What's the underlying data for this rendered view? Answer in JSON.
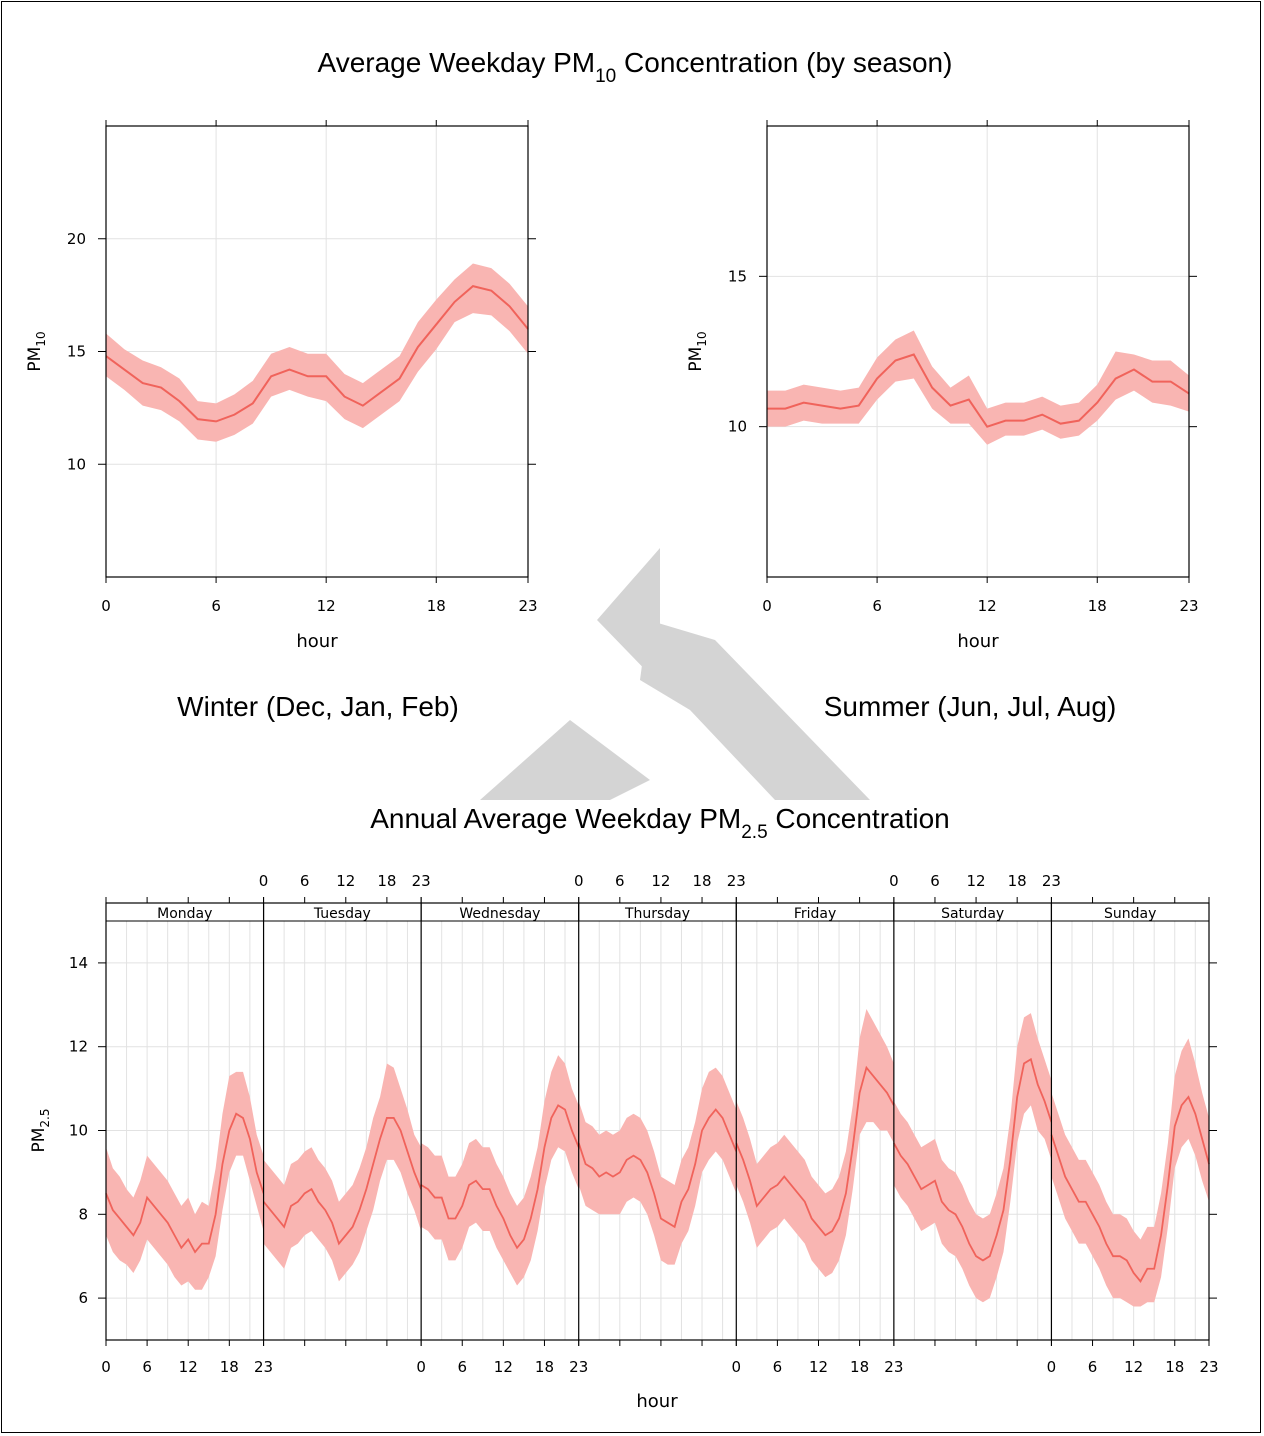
{
  "colors": {
    "line": "#f0635b",
    "band": "#f9b5b2",
    "grid": "#e2e2e2",
    "axis": "#000000",
    "watermark": "#d4d4d4"
  },
  "top_title": {
    "prefix": "Average Weekday PM",
    "sub": "10",
    "suffix": " Concentration (by season)"
  },
  "season_labels": {
    "winter": "Winter (Dec, Jan, Feb)",
    "summer": "Summer (Jun, Jul, Aug)"
  },
  "bottom_title": {
    "prefix": "Annual Average Weekday PM",
    "sub": "2.5",
    "suffix": " Concentration"
  },
  "chart_data": [
    {
      "type": "line",
      "panel": "winter",
      "x": [
        0,
        1,
        2,
        3,
        4,
        5,
        6,
        7,
        8,
        9,
        10,
        11,
        12,
        13,
        14,
        15,
        16,
        17,
        18,
        19,
        20,
        21,
        22,
        23
      ],
      "xticks": [
        0,
        6,
        12,
        18,
        23
      ],
      "xlabel": "hour",
      "ylabel": {
        "base": "PM",
        "sub": "10"
      },
      "ylim": [
        5,
        25
      ],
      "yticks": [
        10,
        15,
        20
      ],
      "grid": true,
      "series": [
        {
          "values": [
            14.8,
            14.2,
            13.6,
            13.4,
            12.8,
            12.0,
            11.9,
            12.2,
            12.7,
            13.9,
            14.2,
            13.9,
            13.9,
            13.0,
            12.6,
            13.2,
            13.8,
            15.2,
            16.2,
            17.2,
            17.9,
            17.7,
            17.0,
            16.0
          ],
          "lower": [
            13.9,
            13.3,
            12.6,
            12.4,
            11.9,
            11.1,
            11.0,
            11.3,
            11.8,
            13.0,
            13.3,
            13.0,
            12.8,
            12.0,
            11.6,
            12.2,
            12.8,
            14.1,
            15.1,
            16.3,
            16.7,
            16.6,
            15.9,
            14.9
          ],
          "upper": [
            15.8,
            15.1,
            14.6,
            14.3,
            13.8,
            12.8,
            12.7,
            13.1,
            13.7,
            14.9,
            15.2,
            14.9,
            14.9,
            14.0,
            13.6,
            14.2,
            14.8,
            16.3,
            17.3,
            18.2,
            18.9,
            18.7,
            18.0,
            17.0
          ]
        }
      ]
    },
    {
      "type": "line",
      "panel": "summer",
      "x": [
        0,
        1,
        2,
        3,
        4,
        5,
        6,
        7,
        8,
        9,
        10,
        11,
        12,
        13,
        14,
        15,
        16,
        17,
        18,
        19,
        20,
        21,
        22,
        23
      ],
      "xticks": [
        0,
        6,
        12,
        18,
        23
      ],
      "xlabel": "hour",
      "ylabel": {
        "base": "PM",
        "sub": "10"
      },
      "ylim": [
        5,
        20
      ],
      "yticks": [
        10,
        15
      ],
      "grid": true,
      "series": [
        {
          "values": [
            10.6,
            10.6,
            10.8,
            10.7,
            10.6,
            10.7,
            11.6,
            12.2,
            12.4,
            11.3,
            10.7,
            10.9,
            10.0,
            10.2,
            10.2,
            10.4,
            10.1,
            10.2,
            10.8,
            11.6,
            11.9,
            11.5,
            11.5,
            11.1
          ],
          "lower": [
            10.0,
            10.0,
            10.2,
            10.1,
            10.1,
            10.1,
            10.9,
            11.5,
            11.6,
            10.6,
            10.1,
            10.1,
            9.4,
            9.7,
            9.7,
            9.9,
            9.6,
            9.7,
            10.2,
            10.9,
            11.2,
            10.8,
            10.7,
            10.5
          ],
          "upper": [
            11.2,
            11.2,
            11.4,
            11.3,
            11.2,
            11.3,
            12.3,
            12.9,
            13.2,
            12.0,
            11.3,
            11.7,
            10.6,
            10.8,
            10.8,
            11.0,
            10.7,
            10.8,
            11.4,
            12.5,
            12.4,
            12.2,
            12.2,
            11.7
          ]
        }
      ]
    },
    {
      "type": "line",
      "panel": "annual-by-day",
      "panels": [
        "Monday",
        "Tuesday",
        "Wednesday",
        "Thursday",
        "Friday",
        "Saturday",
        "Sunday"
      ],
      "xticks": [
        0,
        6,
        12,
        18,
        23
      ],
      "xlabel": "hour",
      "ylabel": {
        "base": "PM",
        "sub": "2.5"
      },
      "ylim": [
        5,
        15
      ],
      "yticks": [
        6,
        8,
        10,
        12,
        14
      ],
      "grid": true,
      "series": [
        {
          "name": "Monday",
          "values": [
            8.5,
            8.1,
            7.9,
            7.7,
            7.5,
            7.8,
            8.4,
            8.2,
            8.0,
            7.8,
            7.5,
            7.2,
            7.4,
            7.1,
            7.3,
            7.3,
            8.0,
            9.2,
            10.0,
            10.4,
            10.3,
            9.8,
            9.0,
            8.5
          ],
          "lower": [
            7.5,
            7.1,
            6.9,
            6.8,
            6.6,
            6.9,
            7.4,
            7.2,
            7.0,
            6.8,
            6.5,
            6.3,
            6.4,
            6.2,
            6.2,
            6.5,
            7.0,
            8.1,
            9.0,
            9.4,
            9.4,
            8.8,
            8.2,
            7.6
          ],
          "upper": [
            9.6,
            9.1,
            8.9,
            8.6,
            8.4,
            8.8,
            9.4,
            9.2,
            9.0,
            8.8,
            8.5,
            8.2,
            8.4,
            8.0,
            8.3,
            8.2,
            9.1,
            10.4,
            11.3,
            11.4,
            11.4,
            10.8,
            9.9,
            9.4
          ]
        },
        {
          "name": "Tuesday",
          "values": [
            8.3,
            8.1,
            7.9,
            7.7,
            8.2,
            8.3,
            8.5,
            8.6,
            8.3,
            8.1,
            7.8,
            7.3,
            7.5,
            7.7,
            8.1,
            8.6,
            9.2,
            9.8,
            10.3,
            10.3,
            10.0,
            9.5,
            9.0,
            8.6
          ],
          "lower": [
            7.3,
            7.1,
            6.9,
            6.7,
            7.2,
            7.3,
            7.5,
            7.6,
            7.4,
            7.2,
            6.9,
            6.4,
            6.6,
            6.8,
            7.1,
            7.6,
            8.1,
            8.8,
            9.3,
            9.3,
            9.0,
            8.5,
            8.1,
            7.6
          ],
          "upper": [
            9.3,
            9.1,
            8.9,
            8.7,
            9.2,
            9.3,
            9.5,
            9.6,
            9.3,
            9.1,
            8.8,
            8.3,
            8.5,
            8.7,
            9.1,
            9.6,
            10.3,
            10.8,
            11.6,
            11.5,
            11.0,
            10.5,
            9.9,
            9.6
          ]
        },
        {
          "name": "Wednesday",
          "values": [
            8.7,
            8.6,
            8.4,
            8.4,
            7.9,
            7.9,
            8.2,
            8.7,
            8.8,
            8.6,
            8.6,
            8.2,
            7.9,
            7.5,
            7.2,
            7.4,
            7.9,
            8.6,
            9.6,
            10.3,
            10.6,
            10.5,
            10.0,
            9.6
          ],
          "lower": [
            7.7,
            7.6,
            7.4,
            7.4,
            6.9,
            6.9,
            7.2,
            7.7,
            7.8,
            7.6,
            7.6,
            7.2,
            6.9,
            6.6,
            6.3,
            6.5,
            6.9,
            7.6,
            8.6,
            9.3,
            9.6,
            9.5,
            9.0,
            8.6
          ],
          "upper": [
            9.7,
            9.6,
            9.4,
            9.4,
            8.9,
            8.9,
            9.2,
            9.7,
            9.8,
            9.6,
            9.6,
            9.2,
            8.9,
            8.5,
            8.2,
            8.4,
            8.9,
            9.6,
            10.7,
            11.4,
            11.8,
            11.6,
            11.0,
            10.6
          ]
        },
        {
          "name": "Thursday",
          "values": [
            9.7,
            9.2,
            9.1,
            8.9,
            9.0,
            8.9,
            9.0,
            9.3,
            9.4,
            9.3,
            9.0,
            8.5,
            7.9,
            7.8,
            7.7,
            8.3,
            8.6,
            9.2,
            10.0,
            10.3,
            10.5,
            10.3,
            9.9,
            9.5
          ],
          "lower": [
            8.7,
            8.2,
            8.1,
            8.0,
            8.0,
            8.0,
            8.0,
            8.3,
            8.4,
            8.3,
            8.0,
            7.5,
            6.9,
            6.8,
            6.8,
            7.3,
            7.6,
            8.2,
            9.0,
            9.3,
            9.5,
            9.3,
            8.9,
            8.5
          ],
          "upper": [
            10.7,
            10.2,
            10.1,
            9.9,
            10.0,
            9.9,
            10.0,
            10.3,
            10.4,
            10.3,
            10.0,
            9.5,
            8.9,
            8.8,
            8.7,
            9.3,
            9.6,
            10.2,
            11.0,
            11.4,
            11.5,
            11.3,
            10.9,
            10.5
          ]
        },
        {
          "name": "Friday",
          "values": [
            9.7,
            9.3,
            8.8,
            8.2,
            8.4,
            8.6,
            8.7,
            8.9,
            8.7,
            8.5,
            8.3,
            7.9,
            7.7,
            7.5,
            7.6,
            7.9,
            8.5,
            9.6,
            10.9,
            11.5,
            11.3,
            11.1,
            10.9,
            10.6
          ],
          "lower": [
            8.7,
            8.3,
            7.8,
            7.2,
            7.4,
            7.6,
            7.7,
            7.9,
            7.7,
            7.5,
            7.3,
            6.9,
            6.7,
            6.5,
            6.6,
            6.9,
            7.5,
            8.6,
            9.9,
            10.2,
            10.2,
            10.0,
            10.0,
            9.7
          ],
          "upper": [
            10.7,
            10.3,
            9.8,
            9.2,
            9.4,
            9.6,
            9.7,
            9.9,
            9.7,
            9.5,
            9.3,
            8.9,
            8.7,
            8.5,
            8.6,
            8.9,
            9.5,
            10.6,
            12.2,
            12.9,
            12.6,
            12.3,
            12.0,
            11.6
          ]
        },
        {
          "name": "Saturday",
          "values": [
            9.7,
            9.4,
            9.2,
            8.9,
            8.6,
            8.7,
            8.8,
            8.3,
            8.1,
            8.0,
            7.7,
            7.3,
            7.0,
            6.9,
            7.0,
            7.5,
            8.1,
            9.3,
            10.8,
            11.6,
            11.7,
            11.1,
            10.7,
            10.2
          ],
          "lower": [
            8.7,
            8.4,
            8.2,
            7.9,
            7.6,
            7.7,
            7.8,
            7.3,
            7.1,
            7.0,
            6.7,
            6.3,
            6.0,
            5.9,
            6.0,
            6.5,
            7.1,
            8.3,
            9.7,
            10.4,
            10.6,
            10.0,
            9.8,
            9.3
          ],
          "upper": [
            10.7,
            10.4,
            10.2,
            9.9,
            9.6,
            9.7,
            9.8,
            9.3,
            9.1,
            9.0,
            8.7,
            8.3,
            8.0,
            7.9,
            8.0,
            8.5,
            9.1,
            10.3,
            12.0,
            12.7,
            12.8,
            12.2,
            11.7,
            11.2
          ]
        },
        {
          "name": "Sunday",
          "values": [
            9.9,
            9.4,
            8.9,
            8.6,
            8.3,
            8.3,
            8.0,
            7.7,
            7.3,
            7.0,
            7.0,
            6.9,
            6.6,
            6.4,
            6.7,
            6.7,
            7.5,
            8.7,
            10.1,
            10.6,
            10.8,
            10.4,
            9.8,
            9.2
          ],
          "lower": [
            8.9,
            8.4,
            7.9,
            7.6,
            7.3,
            7.3,
            7.0,
            6.7,
            6.3,
            6.0,
            6.0,
            5.9,
            5.8,
            5.8,
            5.9,
            5.9,
            6.5,
            7.7,
            9.1,
            9.6,
            9.8,
            9.4,
            8.8,
            8.3
          ],
          "upper": [
            10.9,
            10.4,
            9.9,
            9.6,
            9.3,
            9.3,
            9.0,
            8.7,
            8.3,
            8.0,
            8.0,
            7.9,
            7.6,
            7.4,
            7.7,
            7.7,
            8.5,
            9.7,
            11.3,
            11.9,
            12.2,
            11.6,
            10.9,
            10.3
          ]
        }
      ]
    }
  ]
}
